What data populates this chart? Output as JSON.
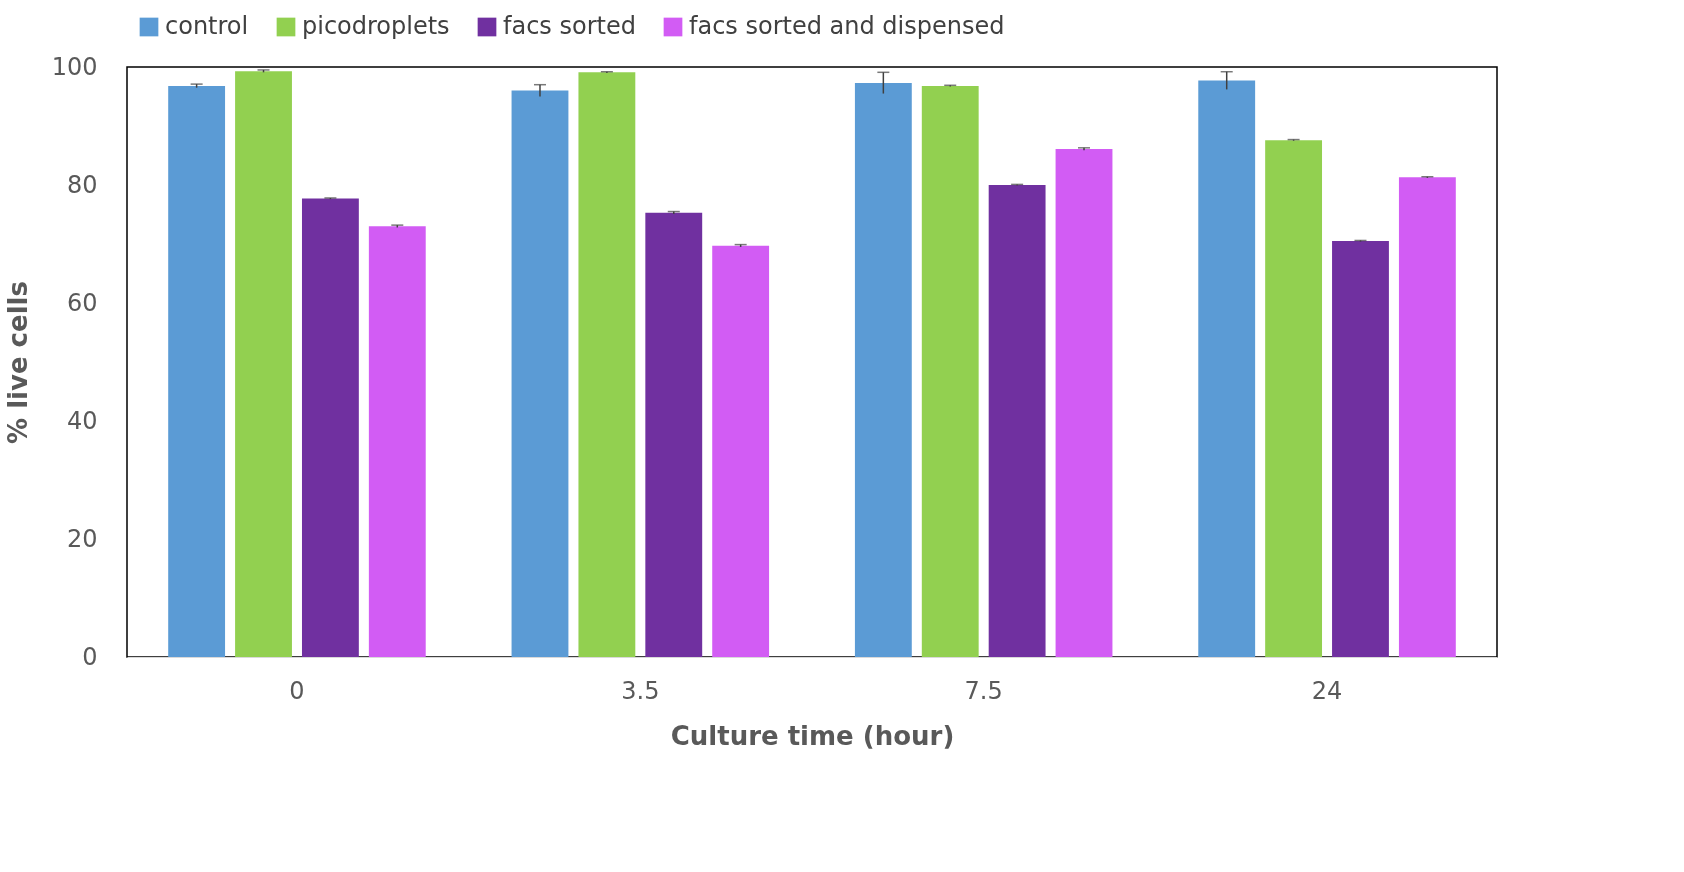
{
  "chart_data": {
    "type": "bar",
    "xlabel": "Culture time (hour)",
    "ylabel": "% live cells",
    "categories": [
      "0",
      "3.5",
      "7.5",
      "24"
    ],
    "series": [
      {
        "name": "control",
        "color": "#5b9bd5",
        "values": [
          96.8,
          96.0,
          97.3,
          97.7
        ],
        "errors": [
          0.3,
          1.0,
          1.8,
          1.5
        ]
      },
      {
        "name": "picodroplets",
        "color": "#92d050",
        "values": [
          99.3,
          99.1,
          96.8,
          87.6
        ],
        "errors": [
          0.2,
          0.1,
          0.1,
          0.1
        ]
      },
      {
        "name": "facs sorted",
        "color": "#7030a0",
        "values": [
          77.7,
          75.3,
          80.0,
          70.5
        ],
        "errors": [
          0.1,
          0.2,
          0.1,
          0.1
        ]
      },
      {
        "name": "facs sorted and dispensed",
        "color": "#d25cf4",
        "values": [
          73.0,
          69.7,
          86.1,
          81.3
        ],
        "errors": [
          0.2,
          0.2,
          0.2,
          0.1
        ]
      }
    ],
    "ylim": [
      0,
      100
    ],
    "yticks": [
      0,
      20,
      40,
      60,
      80,
      100
    ],
    "grid": false,
    "legend": "top"
  }
}
